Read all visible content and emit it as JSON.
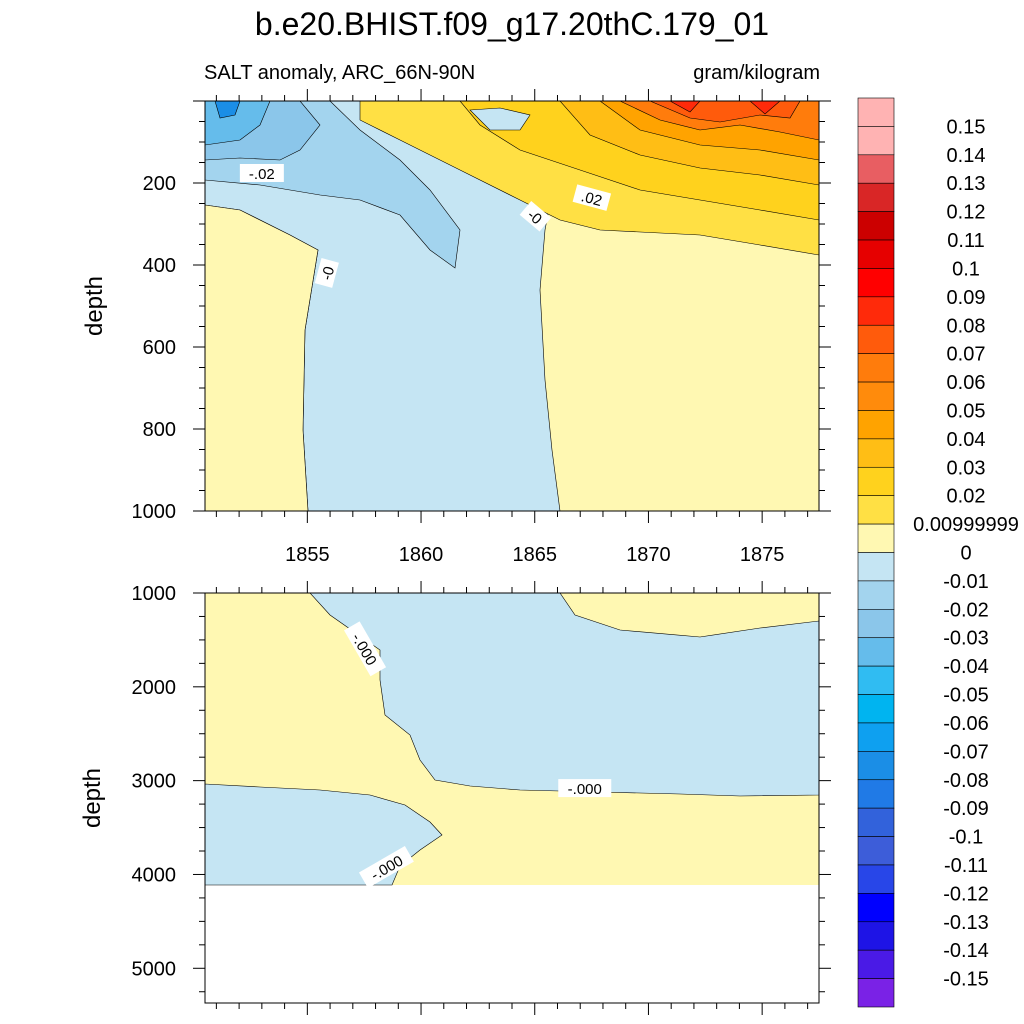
{
  "figure": {
    "title": "b.e20.BHIST.f09_g17.20thC.179_01",
    "subtitle_left": "SALT anomaly, ARC_66N-90N",
    "subtitle_right": "gram/kilogram"
  },
  "colors": {
    "pos_small": "#fff8b2",
    "neg_small": "#c5e5f3",
    "neg_002": "#a3d4ee",
    "neg_003": "#8bc6ea",
    "neg_004": "#65bceb",
    "neg_006": "#1b8ee6",
    "pos_002": "#ffe044",
    "pos_003": "#ffd21d",
    "pos_004": "#ffbe15",
    "pos_005": "#ffa300",
    "pos_007": "#ff7c0c",
    "pos_008": "#ff5b0c",
    "pos_009": "#ff2a0a",
    "empty": "#ffffff"
  },
  "chart_data": [
    {
      "type": "heatmap",
      "panel": "upper",
      "variable": "SALT anomaly",
      "region": "ARC_66N-90N",
      "units": "gram/kilogram",
      "ylabel": "depth",
      "xlim": [
        1850.5,
        1877.5
      ],
      "ylim": [
        1000,
        0
      ],
      "xticks": [
        "1855",
        "1860",
        "1865",
        "1870",
        "1875"
      ],
      "yticks": [
        "200",
        "400",
        "600",
        "800",
        "1000"
      ],
      "contour_labels": [
        {
          "text": "-.02",
          "x": 1853.0,
          "depth": 178
        },
        {
          "text": ".02",
          "x": 1867.5,
          "depth": 238
        },
        {
          "text": "-0",
          "x": 1865.0,
          "depth": 283
        },
        {
          "text": "-0",
          "x": 1855.9,
          "depth": 420
        }
      ],
      "regions": [
        {
          "sign": "positive",
          "value": 0.005,
          "x_range": [
            1850.5,
            1855.1
          ],
          "depth_range": [
            255,
            1000
          ]
        },
        {
          "sign": "negative",
          "value": -0.005,
          "x_range": [
            1855.1,
            1866.2
          ],
          "depth_range": [
            180,
            1000
          ]
        },
        {
          "sign": "positive",
          "value": 0.005,
          "x_range": [
            1866.2,
            1877.5
          ],
          "depth_range": [
            260,
            1000
          ]
        },
        {
          "sign": "negative",
          "value": -0.04,
          "x_range": [
            1850.5,
            1854.5
          ],
          "depth_range": [
            0,
            130
          ]
        },
        {
          "sign": "positive",
          "value": 0.09,
          "x_range": [
            1869.0,
            1877.5
          ],
          "depth_range": [
            0,
            90
          ]
        }
      ]
    },
    {
      "type": "heatmap",
      "panel": "lower",
      "variable": "SALT anomaly",
      "units": "gram/kilogram",
      "ylabel": "depth",
      "xlim": [
        1850.5,
        1877.5
      ],
      "ylim": [
        5370,
        1000
      ],
      "yticks": [
        "1000",
        "2000",
        "3000",
        "4000",
        "5000"
      ],
      "max_depth": 4130,
      "contour_labels": [
        {
          "text": "-.000",
          "x": 1857.5,
          "depth": 1600
        },
        {
          "text": "-.000",
          "x": 1867.2,
          "depth": 3090
        },
        {
          "text": "-.000",
          "x": 1858.5,
          "depth": 3930
        }
      ],
      "regions": [
        {
          "sign": "positive",
          "value": 0.005,
          "x_range": [
            1850.5,
            1859.5
          ],
          "depth_range": [
            1000,
            3050
          ]
        },
        {
          "sign": "negative",
          "value": -0.005,
          "x_range": [
            1855.1,
            1877.5
          ],
          "depth_range": [
            1000,
            3100
          ]
        },
        {
          "sign": "positive",
          "value": 0.005,
          "x_range": [
            1866.2,
            1877.5
          ],
          "depth_range": [
            1000,
            1500
          ]
        },
        {
          "sign": "negative",
          "value": -0.005,
          "x_range": [
            1850.5,
            1859.2
          ],
          "depth_range": [
            3030,
            4130
          ]
        },
        {
          "sign": "positive",
          "value": 0.005,
          "x_range": [
            1859.2,
            1877.5
          ],
          "depth_range": [
            3100,
            4130
          ]
        }
      ]
    }
  ],
  "colorbar": {
    "labels": [
      "0.15",
      "0.14",
      "0.13",
      "0.12",
      "0.11",
      "0.1",
      "0.09",
      "0.08",
      "0.07",
      "0.06",
      "0.05",
      "0.04",
      "0.03",
      "0.02",
      "0.00999999",
      "0",
      "-0.01",
      "-0.02",
      "-0.03",
      "-0.04",
      "-0.05",
      "-0.06",
      "-0.07",
      "-0.08",
      "-0.09",
      "-0.1",
      "-0.11",
      "-0.12",
      "-0.13",
      "-0.14",
      "-0.15"
    ],
    "colors": [
      "#ffb3b3",
      "#e85e62",
      "#d92626",
      "#cc0000",
      "#e60000",
      "#ff0000",
      "#ff2a0a",
      "#ff5b0c",
      "#ff7c0c",
      "#ff8b0c",
      "#ffa300",
      "#ffbe15",
      "#ffd21d",
      "#ffe044",
      "#fff8b2",
      "#c5e5f3",
      "#a3d4ee",
      "#8bc6ea",
      "#65bceb",
      "#30bcf2",
      "#00b4f0",
      "#0ea0f0",
      "#1b8ee6",
      "#207ae6",
      "#3262db",
      "#3d5dd9",
      "#2846e8",
      "#0000ff",
      "#1e14e6",
      "#4a1ae6",
      "#7a22e6"
    ]
  }
}
